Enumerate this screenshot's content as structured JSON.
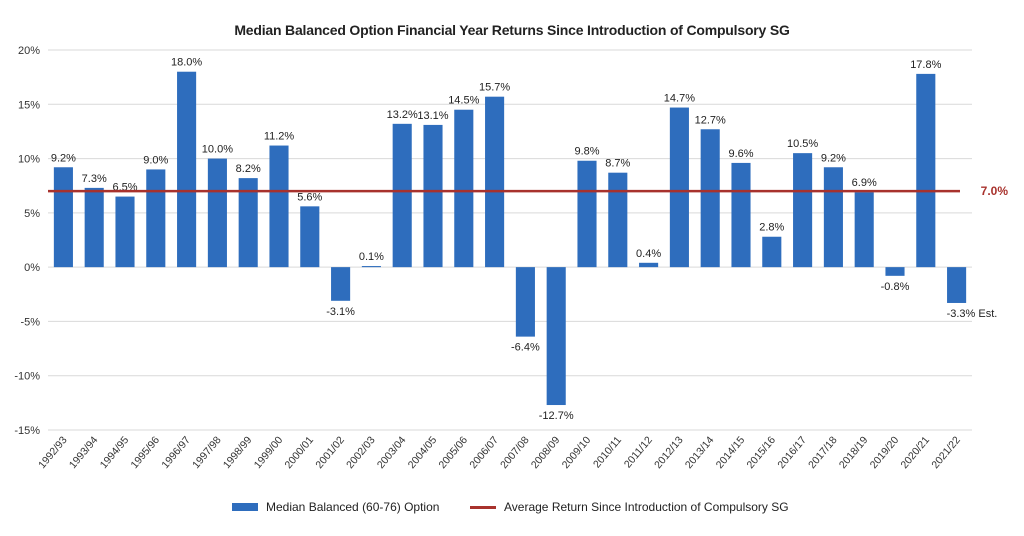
{
  "chart_data": {
    "type": "bar",
    "title": "Median Balanced Option Financial Year Returns Since Introduction of Compulsory SG",
    "categories": [
      "1992/93",
      "1993/94",
      "1994/95",
      "1995/96",
      "1996/97",
      "1997/98",
      "1998/99",
      "1999/00",
      "2000/01",
      "2001/02",
      "2002/03",
      "2003/04",
      "2004/05",
      "2005/06",
      "2006/07",
      "2007/08",
      "2008/09",
      "2009/10",
      "2010/11",
      "2011/12",
      "2012/13",
      "2013/14",
      "2014/15",
      "2015/16",
      "2016/17",
      "2017/18",
      "2018/19",
      "2019/20",
      "2020/21",
      "2021/22"
    ],
    "series": [
      {
        "name": "Median Balanced (60-76) Option",
        "color": "#2E6DBD",
        "values": [
          9.2,
          7.3,
          6.5,
          9.0,
          18.0,
          10.0,
          8.2,
          11.2,
          5.6,
          -3.1,
          0.1,
          13.2,
          13.1,
          14.5,
          15.7,
          -6.4,
          -12.7,
          9.8,
          8.7,
          0.4,
          14.7,
          12.7,
          9.6,
          2.8,
          10.5,
          9.2,
          6.9,
          -0.8,
          17.8,
          -3.3
        ],
        "labels": [
          "9.2%",
          "7.3%",
          "6.5%",
          "9.0%",
          "18.0%",
          "10.0%",
          "8.2%",
          "11.2%",
          "5.6%",
          "-3.1%",
          "0.1%",
          "13.2%",
          "13.1%",
          "14.5%",
          "15.7%",
          "-6.4%",
          "-12.7%",
          "9.8%",
          "8.7%",
          "0.4%",
          "14.7%",
          "12.7%",
          "9.6%",
          "2.8%",
          "10.5%",
          "9.2%",
          "6.9%",
          "-0.8%",
          "17.8%",
          "-3.3% Est."
        ]
      }
    ],
    "average_line": {
      "name": "Average Return Since Introduction of Compulsory SG",
      "value": 7.0,
      "label": "7.0%",
      "color": "#A8322D"
    },
    "ylim": [
      -15,
      20
    ],
    "yticks": [
      -15,
      -10,
      -5,
      0,
      5,
      10,
      15,
      20
    ],
    "ytick_labels": [
      "-15%",
      "-10%",
      "-5%",
      "0%",
      "5%",
      "10%",
      "15%",
      "20%"
    ],
    "grid": true,
    "legend_position": "bottom"
  }
}
